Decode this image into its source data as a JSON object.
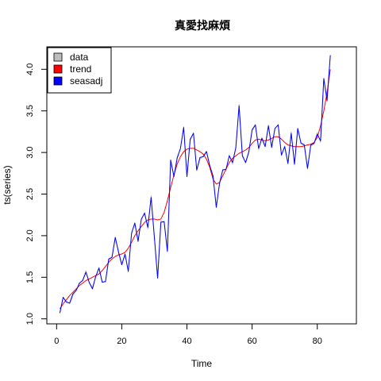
{
  "chart_data": {
    "type": "line",
    "title": "真愛找麻煩",
    "xlabel": "Time",
    "ylabel": "ts(series)",
    "xlim": [
      -3,
      92
    ],
    "ylim": [
      0.94,
      4.27
    ],
    "x_ticks": [
      0,
      20,
      40,
      60,
      80
    ],
    "y_ticks": [
      1.0,
      1.5,
      2.0,
      2.5,
      3.0,
      3.5,
      4.0
    ],
    "legend": {
      "position": "top-left",
      "items": [
        {
          "label": "data",
          "color": "#bebebe"
        },
        {
          "label": "trend",
          "color": "#ff0000"
        },
        {
          "label": "seasadj",
          "color": "#0000ff"
        }
      ]
    },
    "x": [
      1,
      2,
      3,
      4,
      5,
      6,
      7,
      8,
      9,
      10,
      11,
      12,
      13,
      14,
      15,
      16,
      17,
      18,
      19,
      20,
      21,
      22,
      23,
      24,
      25,
      26,
      27,
      28,
      29,
      30,
      31,
      32,
      33,
      34,
      35,
      36,
      37,
      38,
      39,
      40,
      41,
      42,
      43,
      44,
      45,
      46,
      47,
      48,
      49,
      50,
      51,
      52,
      53,
      54,
      55,
      56,
      57,
      58,
      59,
      60,
      61,
      62,
      63,
      64,
      65,
      66,
      67,
      68,
      69,
      70,
      71,
      72,
      73,
      74,
      75,
      76,
      77,
      78,
      79,
      80,
      81,
      82,
      83,
      84
    ],
    "series": [
      {
        "name": "data",
        "color": "#bebebe",
        "values": [
          1.08,
          1.25,
          1.22,
          1.18,
          1.28,
          1.35,
          1.42,
          1.47,
          1.58,
          1.43,
          1.38,
          1.5,
          1.62,
          1.45,
          1.44,
          1.7,
          1.75,
          1.97,
          1.82,
          1.66,
          1.76,
          1.58,
          2.02,
          2.16,
          1.95,
          2.19,
          2.28,
          2.08,
          2.48,
          2.0,
          1.49,
          2.18,
          2.16,
          1.82,
          2.89,
          2.72,
          2.95,
          3.04,
          3.31,
          2.72,
          3.14,
          3.24,
          2.78,
          2.92,
          2.96,
          3.02,
          2.85,
          2.7,
          2.35,
          2.62,
          2.8,
          2.78,
          2.97,
          2.86,
          3.05,
          3.58,
          2.98,
          2.87,
          3.0,
          3.28,
          3.34,
          3.03,
          3.18,
          3.08,
          3.33,
          3.07,
          3.28,
          3.34,
          2.96,
          3.08,
          2.86,
          3.25,
          2.85,
          3.28,
          3.12,
          3.1,
          2.8,
          3.08,
          3.1,
          3.24,
          3.12,
          3.88,
          3.66,
          4.16
        ]
      },
      {
        "name": "trend",
        "color": "#ff0000",
        "values": [
          1.12,
          1.18,
          1.23,
          1.28,
          1.32,
          1.36,
          1.4,
          1.43,
          1.46,
          1.48,
          1.5,
          1.52,
          1.54,
          1.58,
          1.63,
          1.68,
          1.72,
          1.75,
          1.77,
          1.78,
          1.8,
          1.85,
          1.92,
          2.0,
          2.06,
          2.11,
          2.16,
          2.19,
          2.2,
          2.2,
          2.19,
          2.2,
          2.28,
          2.42,
          2.58,
          2.73,
          2.86,
          2.95,
          3.01,
          3.04,
          3.05,
          3.05,
          3.03,
          3.01,
          2.98,
          2.92,
          2.82,
          2.68,
          2.62,
          2.64,
          2.72,
          2.8,
          2.88,
          2.93,
          2.96,
          2.99,
          3.01,
          3.03,
          3.06,
          3.11,
          3.15,
          3.16,
          3.15,
          3.14,
          3.15,
          3.17,
          3.19,
          3.19,
          3.16,
          3.12,
          3.09,
          3.08,
          3.07,
          3.07,
          3.07,
          3.08,
          3.09,
          3.1,
          3.12,
          3.18,
          3.32,
          3.5,
          3.72,
          4.0
        ]
      },
      {
        "name": "seasadj",
        "color": "#0000ff",
        "values": [
          1.07,
          1.26,
          1.2,
          1.19,
          1.3,
          1.34,
          1.43,
          1.46,
          1.56,
          1.44,
          1.36,
          1.51,
          1.61,
          1.44,
          1.45,
          1.72,
          1.74,
          1.98,
          1.8,
          1.65,
          1.78,
          1.57,
          2.03,
          2.15,
          1.93,
          2.2,
          2.27,
          2.1,
          2.46,
          1.98,
          1.49,
          2.16,
          2.17,
          1.81,
          2.91,
          2.71,
          2.93,
          3.05,
          3.3,
          2.71,
          3.16,
          3.23,
          2.79,
          2.94,
          2.95,
          3.01,
          2.84,
          2.72,
          2.34,
          2.63,
          2.79,
          2.8,
          2.96,
          2.88,
          3.06,
          3.56,
          2.96,
          2.88,
          3.01,
          3.27,
          3.33,
          3.05,
          3.17,
          3.07,
          3.32,
          3.06,
          3.29,
          3.33,
          2.97,
          3.07,
          2.87,
          3.23,
          2.86,
          3.29,
          3.11,
          3.09,
          2.81,
          3.09,
          3.11,
          3.22,
          3.14,
          3.89,
          3.62,
          4.17
        ]
      }
    ]
  }
}
